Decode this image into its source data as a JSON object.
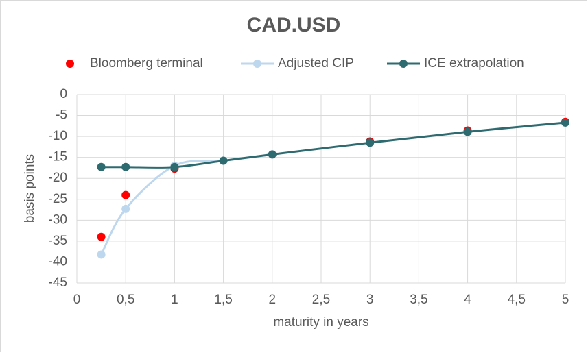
{
  "chart_data": {
    "type": "line",
    "title": "CAD.USD",
    "xlabel": "maturity in years",
    "ylabel": "basis points",
    "xlim": [
      0,
      5
    ],
    "ylim": [
      -45,
      0
    ],
    "xticks": [
      0,
      {
        "value": 0.5,
        "label": "0,5"
      },
      1,
      {
        "value": 1.5,
        "label": "1,5"
      },
      2,
      {
        "value": 2.5,
        "label": "2,5"
      },
      3,
      {
        "value": 3.5,
        "label": "3,5"
      },
      4,
      {
        "value": 4.5,
        "label": "4,5"
      },
      5
    ],
    "yticks": [
      0,
      -5,
      -10,
      -15,
      -20,
      -25,
      -30,
      -35,
      -40,
      -45
    ],
    "grid": true,
    "legend": "top",
    "series": [
      {
        "name": "Bloomberg terminal",
        "color": "#ff0000",
        "style": "markers",
        "x": [
          0.25,
          0.5,
          1,
          3,
          4,
          5
        ],
        "values": [
          -34,
          -24,
          -17.7,
          -11.2,
          -8.6,
          -6.5
        ]
      },
      {
        "name": "Adjusted CIP",
        "color": "#bdd7ee",
        "style": "smooth",
        "x": [
          0.25,
          0.5,
          1,
          1.5,
          2
        ],
        "values": [
          -38.2,
          -27.3,
          -17,
          -15.8,
          -14.3
        ]
      },
      {
        "name": "ICE extrapolation",
        "color": "#2e6b70",
        "style": "smooth",
        "x": [
          0.25,
          0.5,
          1,
          1.5,
          2,
          3,
          4,
          5
        ],
        "values": [
          -17.3,
          -17.3,
          -17.3,
          -15.8,
          -14.3,
          -11.5,
          -8.9,
          -6.7
        ]
      }
    ]
  }
}
